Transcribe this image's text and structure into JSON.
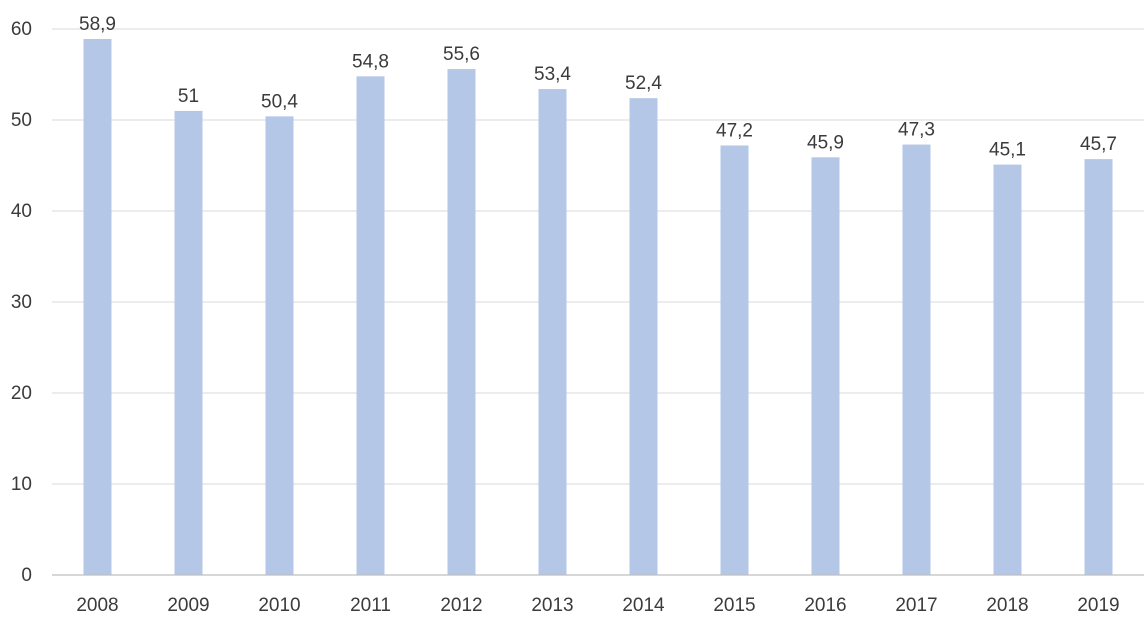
{
  "chart_data": {
    "type": "bar",
    "categories": [
      "2008",
      "2009",
      "2010",
      "2011",
      "2012",
      "2013",
      "2014",
      "2015",
      "2016",
      "2017",
      "2018",
      "2019"
    ],
    "values": [
      58.9,
      51,
      50.4,
      54.8,
      55.6,
      53.4,
      52.4,
      47.2,
      45.9,
      47.3,
      45.1,
      45.7
    ],
    "data_labels": [
      "58,9",
      "51",
      "50,4",
      "54,8",
      "55,6",
      "53,4",
      "52,4",
      "47,2",
      "45,9",
      "47,3",
      "45,1",
      "45,7"
    ],
    "yticks": [
      "0",
      "10",
      "20",
      "30",
      "40",
      "50",
      "60"
    ],
    "ytick_values": [
      0,
      10,
      20,
      30,
      40,
      50,
      60
    ],
    "ylim": [
      0,
      60
    ],
    "title": "",
    "xlabel": "",
    "ylabel": "",
    "grid": true,
    "legend": "none",
    "bar_color": "#b4c7e7"
  }
}
